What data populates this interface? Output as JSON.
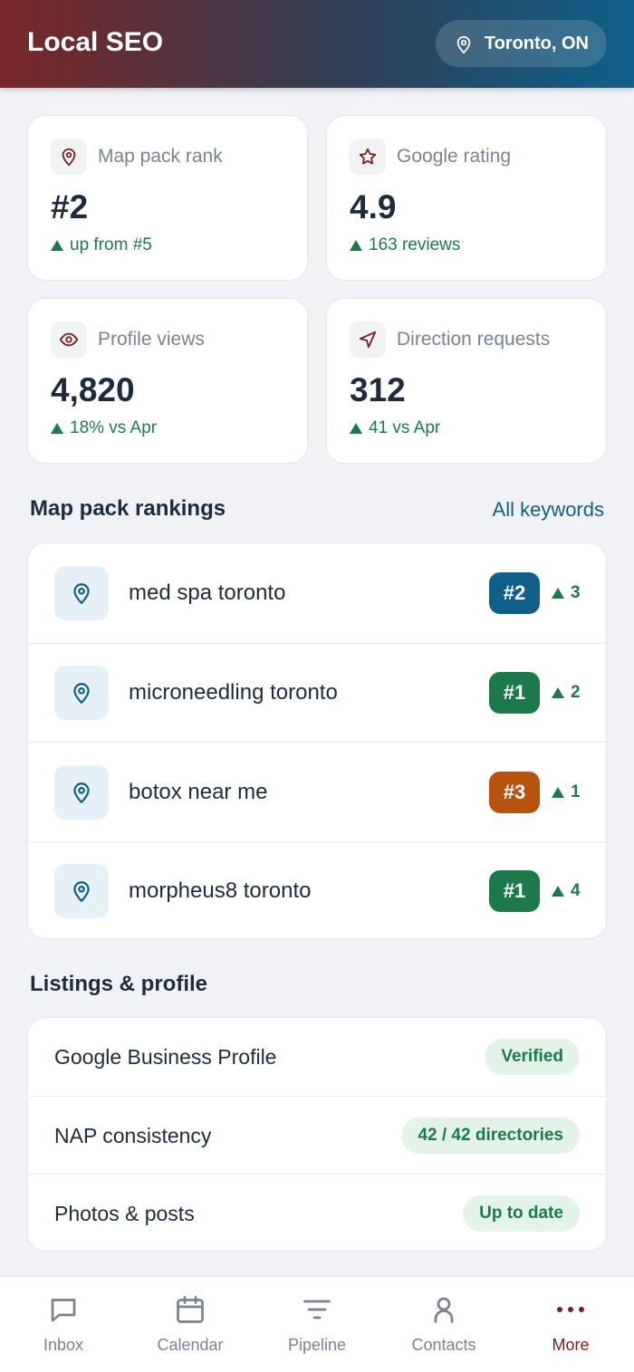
{
  "header": {
    "title": "Local SEO",
    "location": "Toronto, ON"
  },
  "stats": [
    {
      "label": "Map pack rank",
      "value": "#2",
      "delta": "up from #5"
    },
    {
      "label": "Google rating",
      "value": "4.9",
      "delta": "163 reviews"
    },
    {
      "label": "Profile views",
      "value": "4,820",
      "delta": "18% vs Apr"
    },
    {
      "label": "Direction requests",
      "value": "312",
      "delta": "41 vs Apr"
    }
  ],
  "rankings": {
    "title": "Map pack rankings",
    "link": "All keywords",
    "rows": [
      {
        "keyword": "med spa toronto",
        "rank": "#2",
        "change": "3",
        "color": "#0f5f8a"
      },
      {
        "keyword": "microneedling toronto",
        "rank": "#1",
        "change": "2",
        "color": "#1c7a4a"
      },
      {
        "keyword": "botox near me",
        "rank": "#3",
        "change": "1",
        "color": "#b8520f"
      },
      {
        "keyword": "morpheus8 toronto",
        "rank": "#1",
        "change": "4",
        "color": "#1c7a4a"
      }
    ]
  },
  "listings": {
    "title": "Listings & profile",
    "rows": [
      {
        "label": "Google Business Profile",
        "status": "Verified"
      },
      {
        "label": "NAP consistency",
        "status": "42 / 42 directories"
      },
      {
        "label": "Photos & posts",
        "status": "Up to date"
      }
    ]
  },
  "nav": [
    {
      "label": "Inbox"
    },
    {
      "label": "Calendar"
    },
    {
      "label": "Pipeline"
    },
    {
      "label": "Contacts"
    },
    {
      "label": "More",
      "active": true
    }
  ]
}
